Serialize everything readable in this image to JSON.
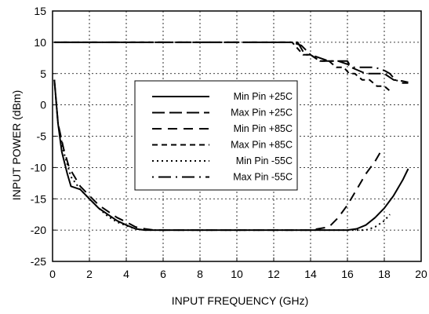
{
  "chart_data": {
    "type": "line",
    "title": "",
    "xlabel": "INPUT FREQUENCY (GHz)",
    "ylabel": "INPUT POWER (dBm)",
    "xlim": [
      0,
      20
    ],
    "ylim": [
      -25,
      15
    ],
    "x_ticks": [
      0,
      2,
      4,
      6,
      8,
      10,
      12,
      14,
      16,
      18,
      20
    ],
    "y_ticks": [
      -25,
      -20,
      -15,
      -10,
      -5,
      0,
      5,
      10,
      15
    ],
    "x_tick_labels": [
      "0",
      "2",
      "4",
      "6",
      "8",
      "10",
      "12",
      "14",
      "16",
      "18",
      "20"
    ],
    "y_tick_labels": [
      "-25",
      "-20",
      "-15",
      "-10",
      "-5",
      "0",
      "5",
      "10",
      "15"
    ],
    "grid": true,
    "legend_position": "center-left",
    "series": [
      {
        "name": "Min Pin +25C",
        "style": "solid",
        "x": [
          0.1,
          0.3,
          0.5,
          0.8,
          1.0,
          1.5,
          2.0,
          2.5,
          3.0,
          3.5,
          4.0,
          4.5,
          5.0,
          5.5,
          6.0,
          8,
          10,
          12,
          14,
          15.0,
          16.0,
          16.5,
          17.0,
          17.5,
          18.0,
          18.5,
          19.0,
          19.3
        ],
        "y": [
          4.0,
          -3.0,
          -7.5,
          -11.0,
          -13.0,
          -13.5,
          -15.0,
          -16.5,
          -17.5,
          -18.5,
          -19.2,
          -19.8,
          -20.0,
          -20.0,
          -20.0,
          -20.0,
          -20.0,
          -20.0,
          -20.0,
          -20.0,
          -20.0,
          -19.8,
          -19.2,
          -18.0,
          -16.5,
          -14.5,
          -12.0,
          -10.2
        ]
      },
      {
        "name": "Max Pin +25C",
        "style": "long-dash",
        "x": [
          0.1,
          1,
          2,
          4,
          6,
          8,
          10,
          12,
          13.0,
          13.3,
          13.7,
          14.0,
          14.5,
          15.0,
          15.5,
          16.0,
          16.2,
          17.0,
          17.5,
          18.0,
          18.5,
          19.0,
          19.3
        ],
        "y": [
          10.0,
          10.0,
          10.0,
          10.0,
          10.0,
          10.0,
          10.0,
          10.0,
          10.0,
          10.0,
          8.0,
          8.0,
          7.0,
          7.0,
          7.0,
          7.0,
          6.0,
          5.0,
          5.0,
          5.0,
          4.0,
          3.8,
          3.6
        ]
      },
      {
        "name": "Min Pin +85C",
        "style": "dashed",
        "x": [
          0.1,
          0.3,
          0.6,
          0.9,
          1.2,
          1.5,
          2.0,
          2.5,
          3.0,
          3.5,
          4.0,
          4.5,
          5.0,
          5.5,
          6.0,
          8,
          10,
          12,
          14,
          15.0,
          15.5,
          16.0,
          16.5,
          17.0,
          17.5,
          17.8
        ],
        "y": [
          4.0,
          -3.0,
          -7.0,
          -10.0,
          -11.5,
          -13.0,
          -14.5,
          -16.0,
          -17.0,
          -18.0,
          -18.7,
          -19.5,
          -19.8,
          -20.0,
          -20.0,
          -20.0,
          -20.0,
          -20.0,
          -20.0,
          -19.5,
          -18.0,
          -16.0,
          -13.5,
          -11.0,
          -9.0,
          -7.5
        ]
      },
      {
        "name": "Max Pin +85C",
        "style": "short-dash",
        "x": [
          0.1,
          1,
          2,
          4,
          6,
          8,
          10,
          12,
          13.0,
          13.3,
          13.6,
          14.0,
          14.5,
          15.0,
          15.4,
          15.8,
          16.1,
          16.4,
          16.8,
          17.2,
          17.6,
          18.0,
          18.4
        ],
        "y": [
          10.0,
          10.0,
          10.0,
          10.0,
          10.0,
          10.0,
          10.0,
          10.0,
          10.0,
          9.0,
          8.0,
          8.0,
          7.0,
          7.0,
          6.0,
          6.0,
          5.0,
          5.0,
          4.0,
          4.0,
          3.0,
          3.0,
          2.0
        ]
      },
      {
        "name": "Min Pin -55C",
        "style": "dotted",
        "x": [
          0.1,
          0.3,
          0.6,
          1.0,
          1.5,
          2.0,
          2.5,
          3.0,
          3.5,
          4.0,
          4.5,
          5.0,
          5.5,
          6.0,
          8,
          10,
          12,
          14,
          15,
          16,
          17.0,
          17.5,
          18.0,
          18.3
        ],
        "y": [
          4.0,
          -3.0,
          -7.5,
          -11.5,
          -13.5,
          -15.0,
          -16.5,
          -17.8,
          -18.7,
          -19.3,
          -19.8,
          -20.0,
          -20.0,
          -20.0,
          -20.0,
          -20.0,
          -20.0,
          -20.0,
          -20.0,
          -20.0,
          -20.0,
          -19.5,
          -18.5,
          -17.5
        ]
      },
      {
        "name": "Max Pin -55C",
        "style": "dash-dot",
        "x": [
          0.1,
          1,
          2,
          4,
          6,
          8,
          10,
          12,
          13.0,
          13.5,
          14.0,
          14.5,
          15.0,
          15.5,
          16.0,
          16.3,
          17.0,
          17.5,
          18.0,
          18.3,
          18.6,
          19.0,
          19.3
        ],
        "y": [
          10.0,
          10.0,
          10.0,
          10.0,
          10.0,
          10.0,
          10.0,
          10.0,
          10.0,
          9.5,
          8.0,
          7.5,
          7.0,
          7.0,
          6.5,
          6.0,
          6.0,
          6.0,
          5.5,
          5.0,
          4.0,
          3.5,
          3.5
        ]
      }
    ]
  }
}
